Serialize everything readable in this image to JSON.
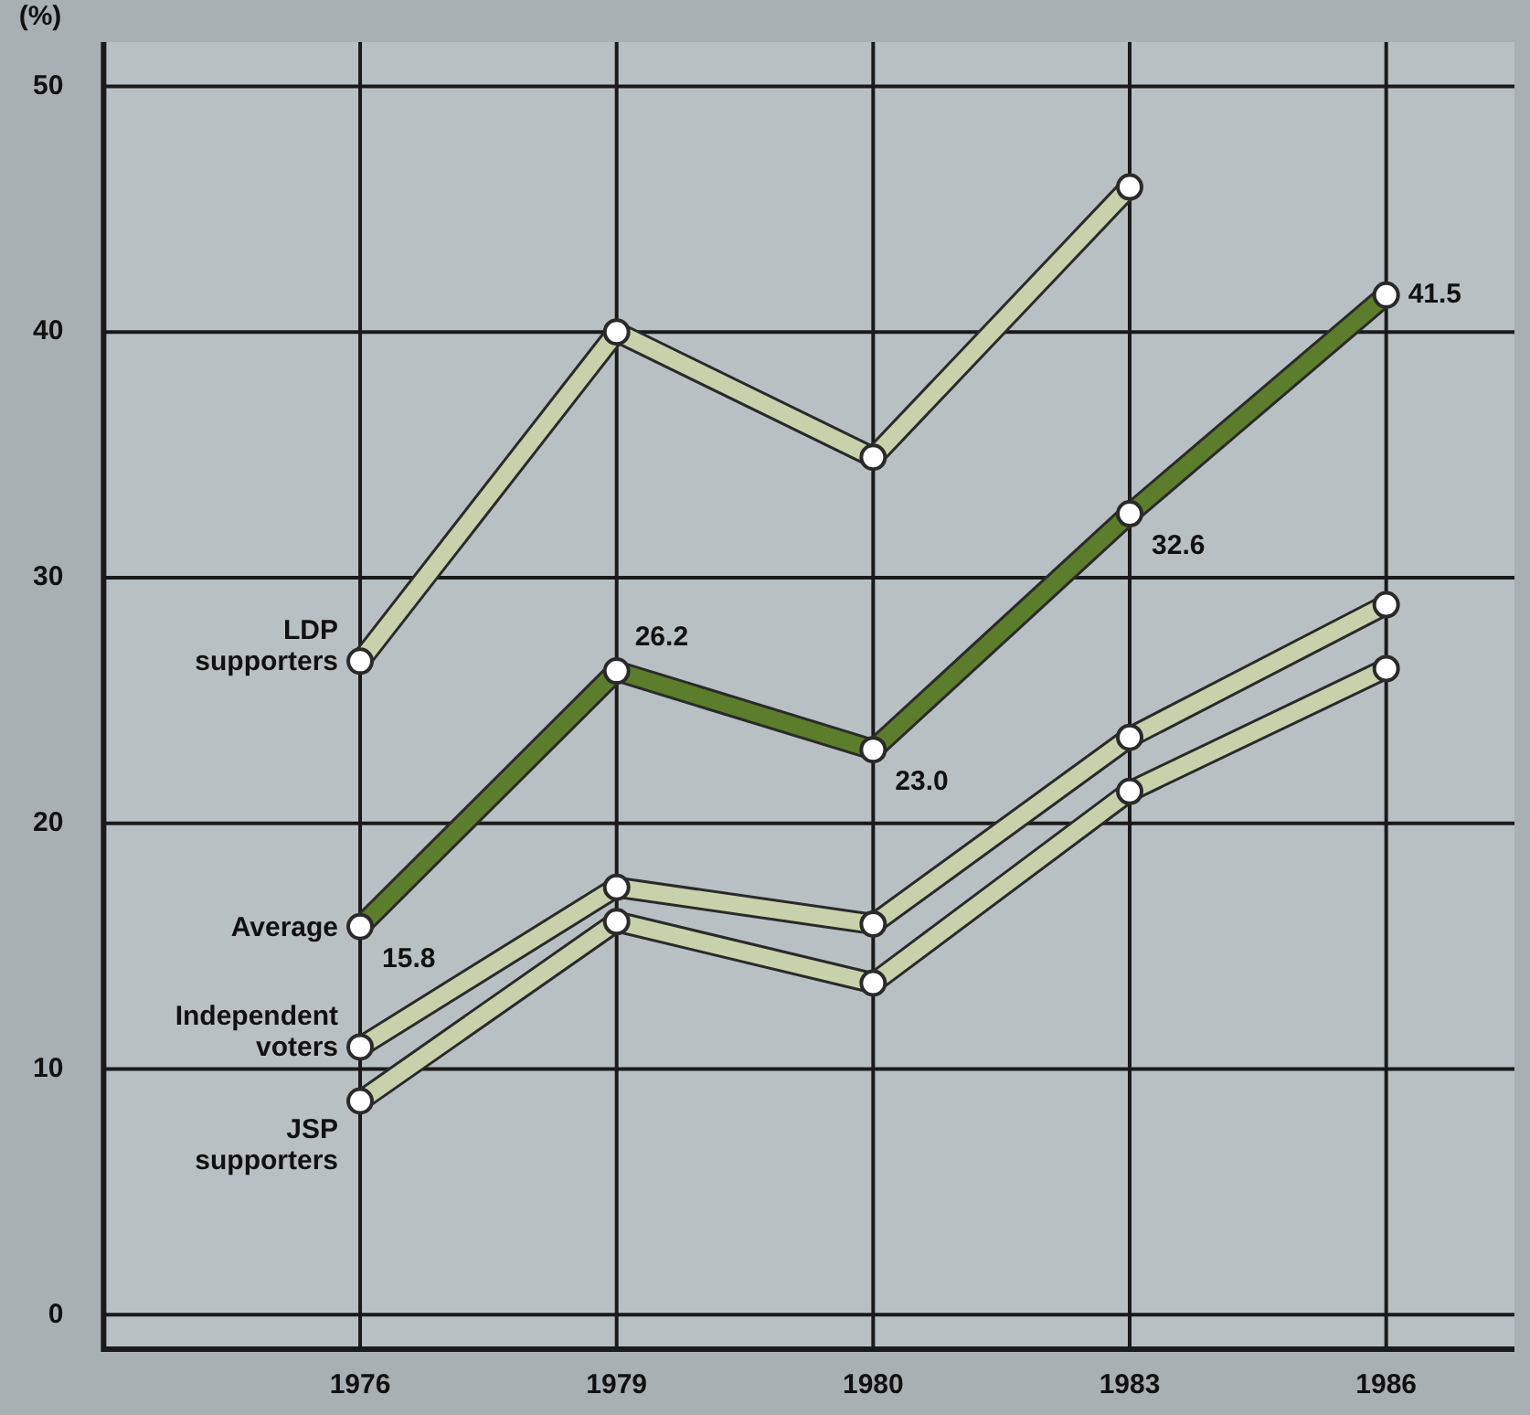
{
  "chart_data": {
    "type": "line",
    "ylabel": "(%)",
    "categories": [
      "1976",
      "1979",
      "1980",
      "1983",
      "1986"
    ],
    "ylim": [
      -1.4,
      51.8
    ],
    "yticks": [
      0,
      10,
      20,
      30,
      40,
      50
    ],
    "grid": true,
    "legend": false,
    "marker": "circle",
    "line_style": "solid",
    "series": [
      {
        "name": "LDP supporters",
        "color": "#c9d1ac",
        "values": [
          26.6,
          40.0,
          34.9,
          45.9,
          null
        ]
      },
      {
        "name": "Average",
        "color": "#5c7d2c",
        "values": [
          15.8,
          26.2,
          23.0,
          32.6,
          41.5
        ],
        "value_labels": [
          "15.8",
          "26.2",
          "23.0",
          "32.6",
          "41.5"
        ]
      },
      {
        "name": "Independent voters",
        "color": "#c9d1ac",
        "values": [
          10.9,
          17.4,
          15.9,
          23.5,
          28.9
        ]
      },
      {
        "name": "JSP supporters",
        "color": "#c9d1ac",
        "values": [
          8.7,
          16.0,
          13.5,
          21.3,
          26.3
        ]
      }
    ]
  }
}
